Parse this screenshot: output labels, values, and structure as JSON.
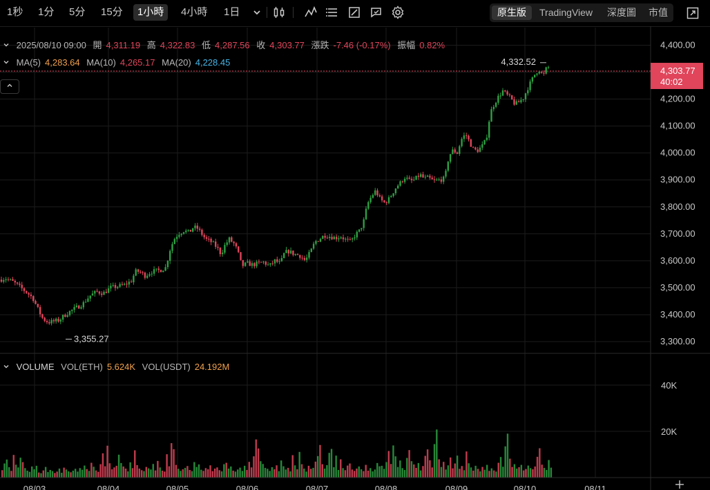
{
  "toolbar": {
    "timeframes": [
      "1秒",
      "1分",
      "5分",
      "15分",
      "1小時",
      "4小時",
      "1日"
    ],
    "active_timeframe": "1小時",
    "icons": [
      "chevron-down-icon",
      "candlestick-type-icon",
      "indicator-icon",
      "menu-lines-icon",
      "drawing-icon",
      "replay-icon",
      "gear-icon"
    ],
    "views": [
      "原生版",
      "TradingView",
      "深度圖",
      "市值"
    ],
    "active_view": "原生版",
    "fullscreen_icon": "fullscreen-icon"
  },
  "ohlc": {
    "datetime": "2025/08/10 09:00",
    "open_label": "開",
    "open": "4,311.19",
    "high_label": "高",
    "high": "4,322.83",
    "low_label": "低",
    "low": "4,287.56",
    "close_label": "收",
    "close": "4,303.77",
    "change_label": "漲跌",
    "change": "-7.46 (-0.17%)",
    "amplitude_label": "振幅",
    "amplitude": "0.82%"
  },
  "ma": {
    "ma5_label": "MA(5)",
    "ma5": "4,283.64",
    "ma10_label": "MA(10)",
    "ma10": "4,265.17",
    "ma20_label": "MA(20)",
    "ma20": "4,228.45"
  },
  "colors": {
    "up": "#2ea043",
    "down": "#e0455b",
    "ma5": "#f0a04b",
    "ma20": "#46b4e6",
    "last_price_bg": "#e0455b"
  },
  "price_axis": {
    "ticks": [
      "4,400.00",
      "4,300.00",
      "4,200.00",
      "4,100.00",
      "4,000.00",
      "3,900.00",
      "3,800.00",
      "3,700.00",
      "3,600.00",
      "3,500.00",
      "3,400.00",
      "3,300.00"
    ],
    "current_price": "4,303.77",
    "countdown": "40:02"
  },
  "annotations": {
    "max_label": "4,332.52",
    "min_label": "3,355.27"
  },
  "volume": {
    "title": "VOLUME",
    "eth_label": "VOL(ETH)",
    "eth_value": "5.624K",
    "usdt_label": "VOL(USDT)",
    "usdt_value": "24.192M",
    "ticks": [
      "40K",
      "20K"
    ]
  },
  "chart_data": {
    "type": "candlestick",
    "x_dates": [
      "08/03",
      "08/04",
      "08/05",
      "08/06",
      "08/07",
      "08/08",
      "08/09",
      "08/10",
      "08/11"
    ],
    "ylim": [
      3250,
      4460
    ],
    "price_path": [
      [
        0,
        3530
      ],
      [
        8,
        3535
      ],
      [
        20,
        3520
      ],
      [
        30,
        3500
      ],
      [
        40,
        3480
      ],
      [
        48,
        3460
      ],
      [
        55,
        3420
      ],
      [
        62,
        3385
      ],
      [
        70,
        3372
      ],
      [
        78,
        3375
      ],
      [
        86,
        3380
      ],
      [
        92,
        3395
      ],
      [
        100,
        3410
      ],
      [
        110,
        3425
      ],
      [
        120,
        3440
      ],
      [
        130,
        3470
      ],
      [
        140,
        3485
      ],
      [
        150,
        3480
      ],
      [
        160,
        3500
      ],
      [
        170,
        3505
      ],
      [
        180,
        3510
      ],
      [
        190,
        3525
      ],
      [
        196,
        3560
      ],
      [
        202,
        3560
      ],
      [
        210,
        3545
      ],
      [
        220,
        3560
      ],
      [
        232,
        3565
      ],
      [
        240,
        3575
      ],
      [
        246,
        3640
      ],
      [
        252,
        3680
      ],
      [
        258,
        3700
      ],
      [
        266,
        3712
      ],
      [
        274,
        3705
      ],
      [
        280,
        3725
      ],
      [
        286,
        3720
      ],
      [
        292,
        3700
      ],
      [
        298,
        3680
      ],
      [
        306,
        3670
      ],
      [
        314,
        3650
      ],
      [
        320,
        3625
      ],
      [
        326,
        3660
      ],
      [
        332,
        3680
      ],
      [
        340,
        3660
      ],
      [
        346,
        3620
      ],
      [
        350,
        3580
      ],
      [
        358,
        3590
      ],
      [
        366,
        3585
      ],
      [
        374,
        3590
      ],
      [
        382,
        3595
      ],
      [
        390,
        3580
      ],
      [
        398,
        3600
      ],
      [
        406,
        3590
      ],
      [
        412,
        3630
      ],
      [
        418,
        3635
      ],
      [
        426,
        3625
      ],
      [
        434,
        3620
      ],
      [
        442,
        3600
      ],
      [
        450,
        3635
      ],
      [
        456,
        3670
      ],
      [
        462,
        3680
      ],
      [
        470,
        3695
      ],
      [
        478,
        3690
      ],
      [
        486,
        3685
      ],
      [
        494,
        3690
      ],
      [
        502,
        3675
      ],
      [
        508,
        3670
      ],
      [
        514,
        3695
      ],
      [
        520,
        3710
      ],
      [
        526,
        3740
      ],
      [
        532,
        3810
      ],
      [
        538,
        3840
      ],
      [
        544,
        3860
      ],
      [
        550,
        3830
      ],
      [
        556,
        3815
      ],
      [
        562,
        3825
      ],
      [
        568,
        3850
      ],
      [
        574,
        3875
      ],
      [
        580,
        3890
      ],
      [
        586,
        3910
      ],
      [
        594,
        3895
      ],
      [
        600,
        3900
      ],
      [
        608,
        3920
      ],
      [
        614,
        3905
      ],
      [
        620,
        3908
      ],
      [
        628,
        3895
      ],
      [
        636,
        3900
      ],
      [
        644,
        3905
      ],
      [
        650,
        3990
      ],
      [
        656,
        4010
      ],
      [
        662,
        4000
      ],
      [
        668,
        4050
      ],
      [
        674,
        4070
      ],
      [
        680,
        4040
      ],
      [
        686,
        4010
      ],
      [
        692,
        4010
      ],
      [
        698,
        4025
      ],
      [
        704,
        4050
      ],
      [
        710,
        4150
      ],
      [
        716,
        4185
      ],
      [
        722,
        4210
      ],
      [
        728,
        4230
      ],
      [
        734,
        4215
      ],
      [
        740,
        4200
      ],
      [
        746,
        4180
      ],
      [
        752,
        4190
      ],
      [
        758,
        4205
      ],
      [
        764,
        4240
      ],
      [
        770,
        4270
      ],
      [
        776,
        4300
      ],
      [
        782,
        4310
      ],
      [
        786,
        4280
      ],
      [
        790,
        4310
      ],
      [
        794,
        4318
      ],
      [
        798,
        4304
      ]
    ],
    "volume_k": [
      3.2,
      6.1,
      7.8,
      4.5,
      2.9,
      9.8,
      5.6,
      4.4,
      8.6,
      6.7,
      4.1,
      3.0,
      2.5,
      4.8,
      3.6,
      5.1,
      2.2,
      1.9,
      3.1,
      4.6,
      2.4,
      3.3,
      2.8,
      2.0,
      2.6,
      3.9,
      2.1,
      4.3,
      3.5,
      2.7,
      2.3,
      3.0,
      3.8,
      2.6,
      4.1,
      3.4,
      5.2,
      3.7,
      2.9,
      6.4,
      4.7,
      3.1,
      2.5,
      5.8,
      10.5,
      4.9,
      13.8,
      6.2,
      3.6,
      4.4,
      5.1,
      9.9,
      6.3,
      4.8,
      3.9,
      2.7,
      6.6,
      4.1,
      11.8,
      5.4,
      3.9,
      3.2,
      2.8,
      4.6,
      4.0,
      3.5,
      5.9,
      3.1,
      7.2,
      4.4,
      3.0,
      2.6,
      10.1,
      4.9,
      14.9,
      12.3,
      5.5,
      3.8,
      2.9,
      3.6,
      4.2,
      5.0,
      3.3,
      2.8,
      6.7,
      4.6,
      5.7,
      3.4,
      2.9,
      4.1,
      3.6,
      5.3,
      2.8,
      3.9,
      4.4,
      3.2,
      2.7,
      5.8,
      6.4,
      3.9,
      4.8,
      3.0,
      2.6,
      3.5,
      4.3,
      2.9,
      5.1,
      3.3,
      6.8,
      4.4,
      9.2,
      16.5,
      12.6,
      7.1,
      5.9,
      4.2,
      3.8,
      2.9,
      4.5,
      3.6,
      5.3,
      2.8,
      7.4,
      4.9,
      3.5,
      4.2,
      2.7,
      9.7,
      5.3,
      3.6,
      11.1,
      5.8,
      3.9,
      2.6,
      5.1,
      3.8,
      4.2,
      6.9,
      9.3,
      14.1,
      5.8,
      3.9,
      5.4,
      10.7,
      12.4,
      4.5,
      9.5,
      3.3,
      7.9,
      4.1,
      3.2,
      5.2,
      6.1,
      3.5,
      2.9,
      3.9,
      4.8,
      3.6,
      2.8,
      5.5,
      3.0,
      4.1,
      2.7,
      3.5,
      6.3,
      4.9,
      5.1,
      3.8,
      6.7,
      11.5,
      5.9,
      13.9,
      9.2,
      4.6,
      7.4,
      4.1,
      3.3,
      8.5,
      11.9,
      7.1,
      5.7,
      4.2,
      6.3,
      3.1,
      5.0,
      9.4,
      12.2,
      7.5,
      4.4,
      14.5,
      20.8,
      7.9,
      4.6,
      6.8,
      3.5,
      5.3,
      8.7,
      4.0,
      6.1,
      9.5,
      3.8,
      5.0,
      3.2,
      11.3,
      6.2,
      4.4,
      3.0,
      5.1,
      3.8,
      2.7,
      4.6,
      3.4,
      5.5,
      2.9,
      4.0,
      3.1,
      2.6,
      6.4,
      8.9,
      4.7,
      13.5,
      19.0,
      8.2,
      4.6,
      5.8,
      3.9,
      4.5,
      5.5,
      3.1,
      3.7,
      5.2,
      4.1,
      3.6,
      4.8,
      9.0,
      12.7,
      5.6,
      4.2,
      3.3,
      7.6,
      4.3
    ]
  }
}
